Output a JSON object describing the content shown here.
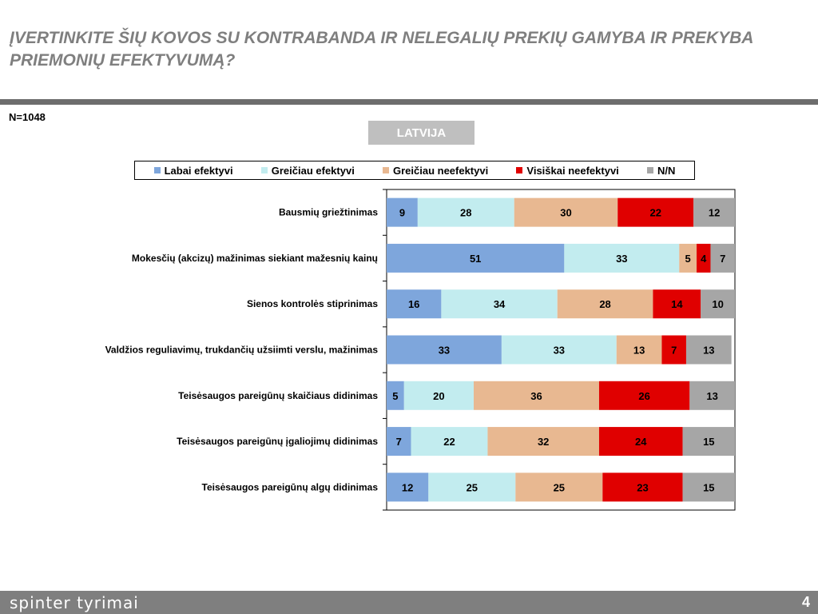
{
  "page": {
    "title": "ĮVERTINKITE ŠIŲ KOVOS SU KONTRABANDA IR NELEGALIŲ PREKIŲ GAMYBA IR PREKYBA PRIEMONIŲ EFEKTYVUMĄ?",
    "sample_size": "N=1048",
    "country_label": "LATVIJA",
    "brand": "spinter tyrimai",
    "page_number": "4"
  },
  "chart_data": {
    "type": "bar",
    "orientation": "horizontal",
    "stacked": true,
    "percent_scale": [
      0,
      100
    ],
    "legend_position": "top",
    "categories": [
      "Bausmių griežtinimas",
      "Mokesčių (akcizų) mažinimas siekiant mažesnių kainų",
      "Sienos kontrolės stiprinimas",
      "Valdžios reguliavimų, trukdančių užsiimti verslu, mažinimas",
      "Teisėsaugos pareigūnų skaičiaus didinimas",
      "Teisėsaugos pareigūnų įgaliojimų didinimas",
      "Teisėsaugos pareigūnų algų didinimas"
    ],
    "series": [
      {
        "name": "Labai efektyvi",
        "color": "#7ea6dc",
        "values": [
          9,
          51,
          16,
          33,
          5,
          7,
          12
        ]
      },
      {
        "name": "Greičiau efektyvi",
        "color": "#c2ecef",
        "values": [
          28,
          33,
          34,
          33,
          20,
          22,
          25
        ]
      },
      {
        "name": "Greičiau neefektyvi",
        "color": "#e8b891",
        "values": [
          30,
          5,
          28,
          13,
          36,
          32,
          25
        ]
      },
      {
        "name": "Visiškai neefektyvi",
        "color": "#e00000",
        "values": [
          22,
          4,
          14,
          7,
          26,
          24,
          23
        ]
      },
      {
        "name": "N/N",
        "color": "#a6a6a6",
        "values": [
          12,
          7,
          10,
          13,
          13,
          15,
          15
        ]
      }
    ]
  }
}
